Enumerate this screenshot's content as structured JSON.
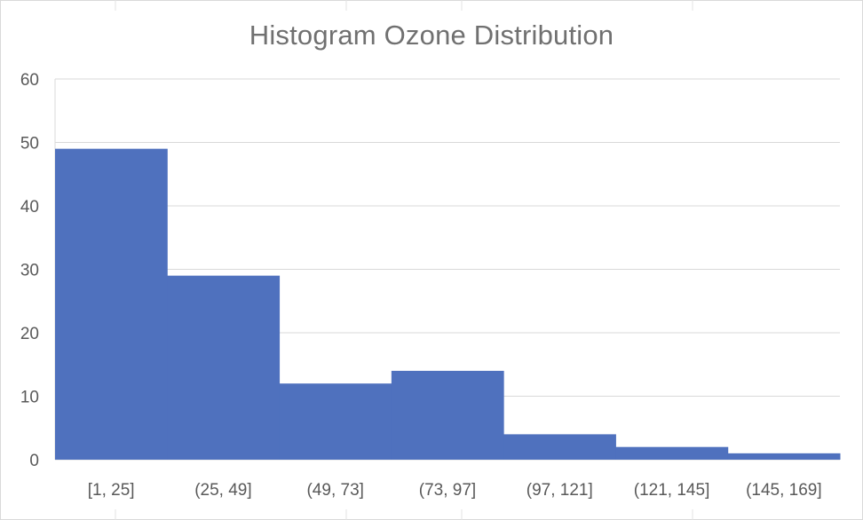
{
  "chart_data": {
    "type": "bar",
    "title": "Histogram Ozone Distribution",
    "xlabel": "",
    "ylabel": "",
    "categories": [
      "[1, 25]",
      "(25, 49]",
      "(49, 73]",
      "(73, 97]",
      "(97, 121]",
      "(121, 145]",
      "(145, 169]"
    ],
    "values": [
      49,
      29,
      12,
      14,
      4,
      2,
      1
    ],
    "ylim": [
      0,
      60
    ],
    "yticks": [
      0,
      10,
      20,
      30,
      40,
      50,
      60
    ],
    "grid": true,
    "bar_gap": 0,
    "colors": {
      "bar": "#4f71be",
      "grid": "#d9d9d9",
      "text": "#595959",
      "title": "#707070"
    }
  }
}
